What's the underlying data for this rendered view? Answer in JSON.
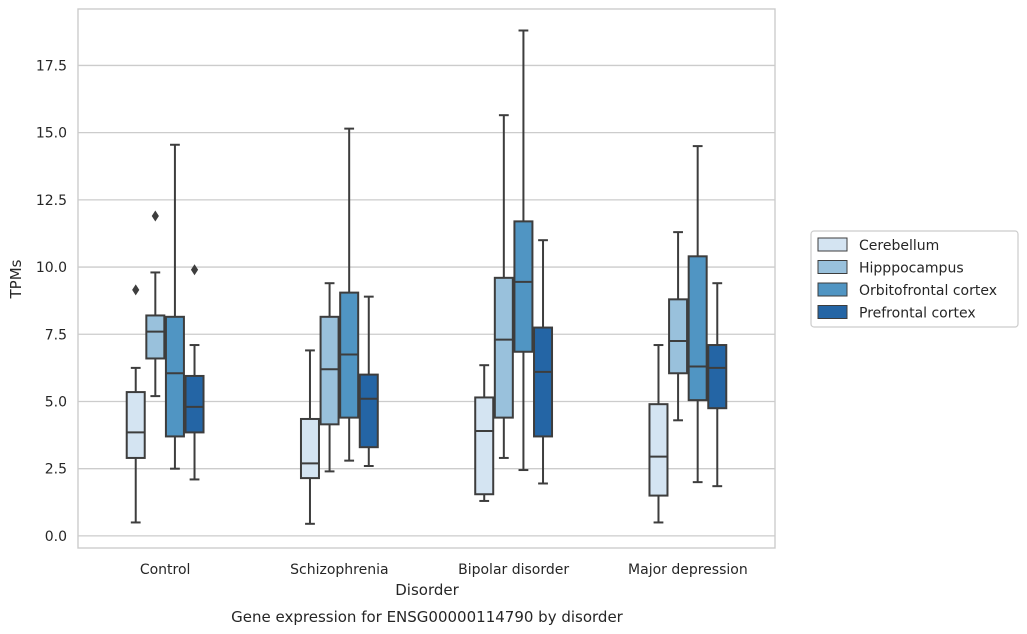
{
  "chart_data": {
    "type": "boxplot",
    "title": "",
    "caption": "Gene expression for ENSG00000114790 by disorder",
    "xlabel": "Disorder",
    "ylabel": "TPMs",
    "ylim": [
      -0.45,
      19.6
    ],
    "yticks": [
      "0.0",
      "2.5",
      "5.0",
      "7.5",
      "10.0",
      "12.5",
      "15.0",
      "17.5"
    ],
    "categories": [
      "Control",
      "Schizophrenia",
      "Bipolar disorder",
      "Major depression"
    ],
    "grid": true,
    "legend_position": "right",
    "series": [
      {
        "name": "Cerebellum",
        "color": "#d4e4f2",
        "boxes": [
          {
            "whislo": 0.5,
            "q1": 2.9,
            "med": 3.85,
            "q3": 5.35,
            "whishi": 6.25,
            "fliers": [
              9.15
            ]
          },
          {
            "whislo": 0.45,
            "q1": 2.15,
            "med": 2.7,
            "q3": 4.35,
            "whishi": 6.9,
            "fliers": []
          },
          {
            "whislo": 1.3,
            "q1": 1.55,
            "med": 3.9,
            "q3": 5.15,
            "whishi": 6.35,
            "fliers": []
          },
          {
            "whislo": 0.5,
            "q1": 1.5,
            "med": 2.95,
            "q3": 4.9,
            "whishi": 7.1,
            "fliers": []
          }
        ]
      },
      {
        "name": "Hipppocampus",
        "color": "#99c1dc",
        "boxes": [
          {
            "whislo": 5.2,
            "q1": 6.6,
            "med": 7.6,
            "q3": 8.2,
            "whishi": 9.8,
            "fliers": [
              11.9
            ]
          },
          {
            "whislo": 2.4,
            "q1": 4.15,
            "med": 6.2,
            "q3": 8.15,
            "whishi": 9.4,
            "fliers": []
          },
          {
            "whislo": 2.9,
            "q1": 4.4,
            "med": 7.3,
            "q3": 9.6,
            "whishi": 15.65,
            "fliers": []
          },
          {
            "whislo": 4.3,
            "q1": 6.05,
            "med": 7.25,
            "q3": 8.8,
            "whishi": 11.3,
            "fliers": []
          }
        ]
      },
      {
        "name": "Orbitofrontal cortex",
        "color": "#5095c3",
        "boxes": [
          {
            "whislo": 2.5,
            "q1": 3.7,
            "med": 6.05,
            "q3": 8.15,
            "whishi": 14.55,
            "fliers": []
          },
          {
            "whislo": 2.8,
            "q1": 4.4,
            "med": 6.75,
            "q3": 9.05,
            "whishi": 15.15,
            "fliers": []
          },
          {
            "whislo": 2.45,
            "q1": 6.85,
            "med": 9.45,
            "q3": 11.7,
            "whishi": 18.8,
            "fliers": []
          },
          {
            "whislo": 2.0,
            "q1": 5.05,
            "med": 6.3,
            "q3": 10.4,
            "whishi": 14.5,
            "fliers": []
          }
        ]
      },
      {
        "name": "Prefrontal cortex",
        "color": "#2465a5",
        "boxes": [
          {
            "whislo": 2.1,
            "q1": 3.85,
            "med": 4.8,
            "q3": 5.95,
            "whishi": 7.1,
            "fliers": [
              9.9
            ]
          },
          {
            "whislo": 2.6,
            "q1": 3.3,
            "med": 5.1,
            "q3": 6.0,
            "whishi": 8.9,
            "fliers": []
          },
          {
            "whislo": 1.95,
            "q1": 3.7,
            "med": 6.1,
            "q3": 7.75,
            "whishi": 11.0,
            "fliers": []
          },
          {
            "whislo": 1.85,
            "q1": 4.75,
            "med": 6.25,
            "q3": 7.1,
            "whishi": 9.4,
            "fliers": []
          }
        ]
      }
    ]
  }
}
